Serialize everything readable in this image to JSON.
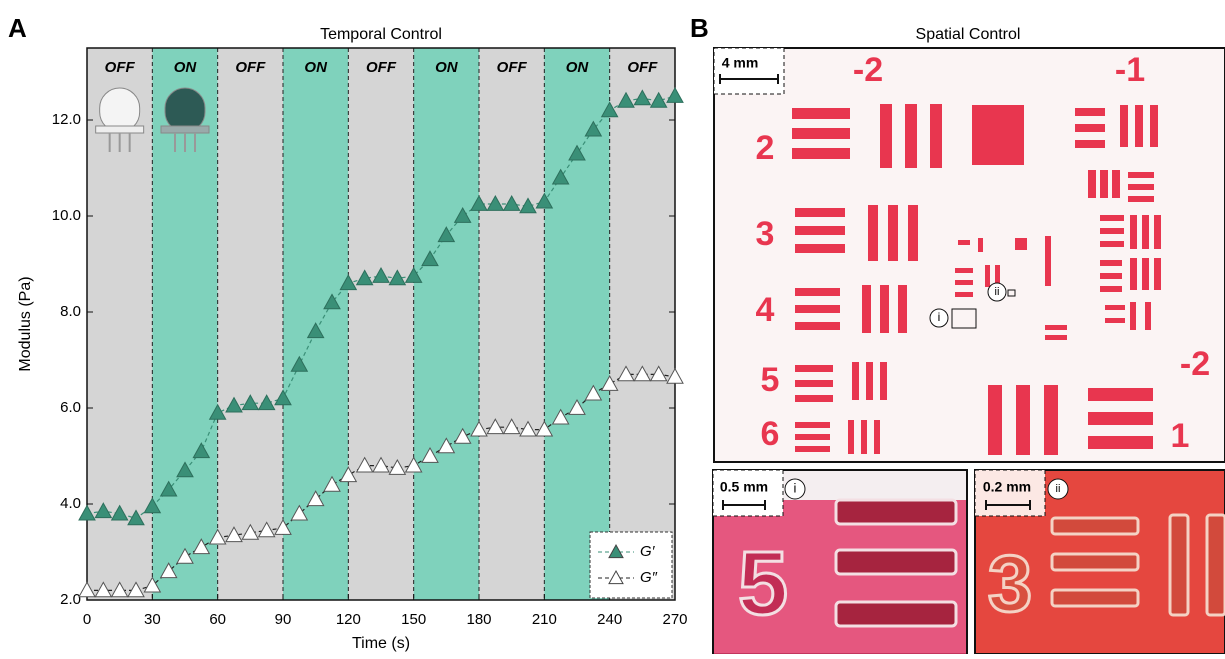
{
  "panel_a": {
    "label": "A"
  },
  "chart_data": {
    "type": "line",
    "title": "Temporal Control",
    "x_label": "Time (s)",
    "y_label": "Modulus (Pa)",
    "xlim": [
      0,
      270
    ],
    "xticks": [
      0,
      30,
      60,
      90,
      120,
      150,
      180,
      210,
      240,
      270
    ],
    "ylim": [
      2,
      13.5
    ],
    "yticks": [
      {
        "value": 2,
        "label": "2.0"
      },
      {
        "value": 4,
        "label": "4.0"
      },
      {
        "value": 6,
        "label": "6.0"
      },
      {
        "value": 8,
        "label": "8.0"
      },
      {
        "value": 10,
        "label": "10.0"
      },
      {
        "value": 12,
        "label": "12.0"
      }
    ],
    "band_colors": {
      "OFF": "#d5d5d5",
      "ON": "#7fd2bc"
    },
    "bands": [
      {
        "label": "OFF",
        "start": 0,
        "end": 30
      },
      {
        "label": "ON",
        "start": 30,
        "end": 60
      },
      {
        "label": "OFF",
        "start": 60,
        "end": 90
      },
      {
        "label": "ON",
        "start": 90,
        "end": 120
      },
      {
        "label": "OFF",
        "start": 120,
        "end": 150
      },
      {
        "label": "ON",
        "start": 150,
        "end": 180
      },
      {
        "label": "OFF",
        "start": 180,
        "end": 210
      },
      {
        "label": "ON",
        "start": 210,
        "end": 240
      },
      {
        "label": "OFF",
        "start": 240,
        "end": 270
      }
    ],
    "x": [
      0,
      7.5,
      15,
      22.5,
      30,
      37.5,
      45,
      52.5,
      60,
      67.5,
      75,
      82.5,
      90,
      97.5,
      105,
      112.5,
      120,
      127.5,
      135,
      142.5,
      150,
      157.5,
      165,
      172.5,
      180,
      187.5,
      195,
      202.5,
      210,
      217.5,
      225,
      232.5,
      240,
      247.5,
      255,
      262.5,
      270
    ],
    "series": [
      {
        "name": "G′",
        "color": "#3a8f77",
        "fill": "#3a8f77",
        "values": [
          3.8,
          3.85,
          3.8,
          3.7,
          3.95,
          4.3,
          4.7,
          5.1,
          5.9,
          6.05,
          6.1,
          6.1,
          6.2,
          6.9,
          7.6,
          8.2,
          8.6,
          8.7,
          8.75,
          8.7,
          8.75,
          9.1,
          9.6,
          10.0,
          10.25,
          10.25,
          10.25,
          10.2,
          10.3,
          10.8,
          11.3,
          11.8,
          12.2,
          12.4,
          12.45,
          12.4,
          12.5
        ]
      },
      {
        "name": "G″",
        "color": "#222222",
        "fill": "#ffffff",
        "values": [
          2.2,
          2.2,
          2.2,
          2.2,
          2.3,
          2.6,
          2.9,
          3.1,
          3.3,
          3.35,
          3.4,
          3.45,
          3.5,
          3.8,
          4.1,
          4.4,
          4.6,
          4.8,
          4.8,
          4.75,
          4.8,
          5.0,
          5.2,
          5.4,
          5.55,
          5.6,
          5.6,
          5.55,
          5.55,
          5.8,
          6.0,
          6.3,
          6.5,
          6.7,
          6.7,
          6.7,
          6.65
        ]
      }
    ],
    "legend": "lower right"
  },
  "panel_b": {
    "label": "B",
    "title": "Spatial Control",
    "scale_bar": "4 mm",
    "group_labels": [
      "-2",
      "-1",
      "2",
      "3",
      "4",
      "5",
      "6",
      "-2",
      "1"
    ],
    "callouts": [
      "i",
      "ii"
    ],
    "insets": [
      {
        "scale_bar": "0.5 mm",
        "label": "i"
      },
      {
        "scale_bar": "0.2 mm",
        "label": "ii"
      }
    ]
  }
}
